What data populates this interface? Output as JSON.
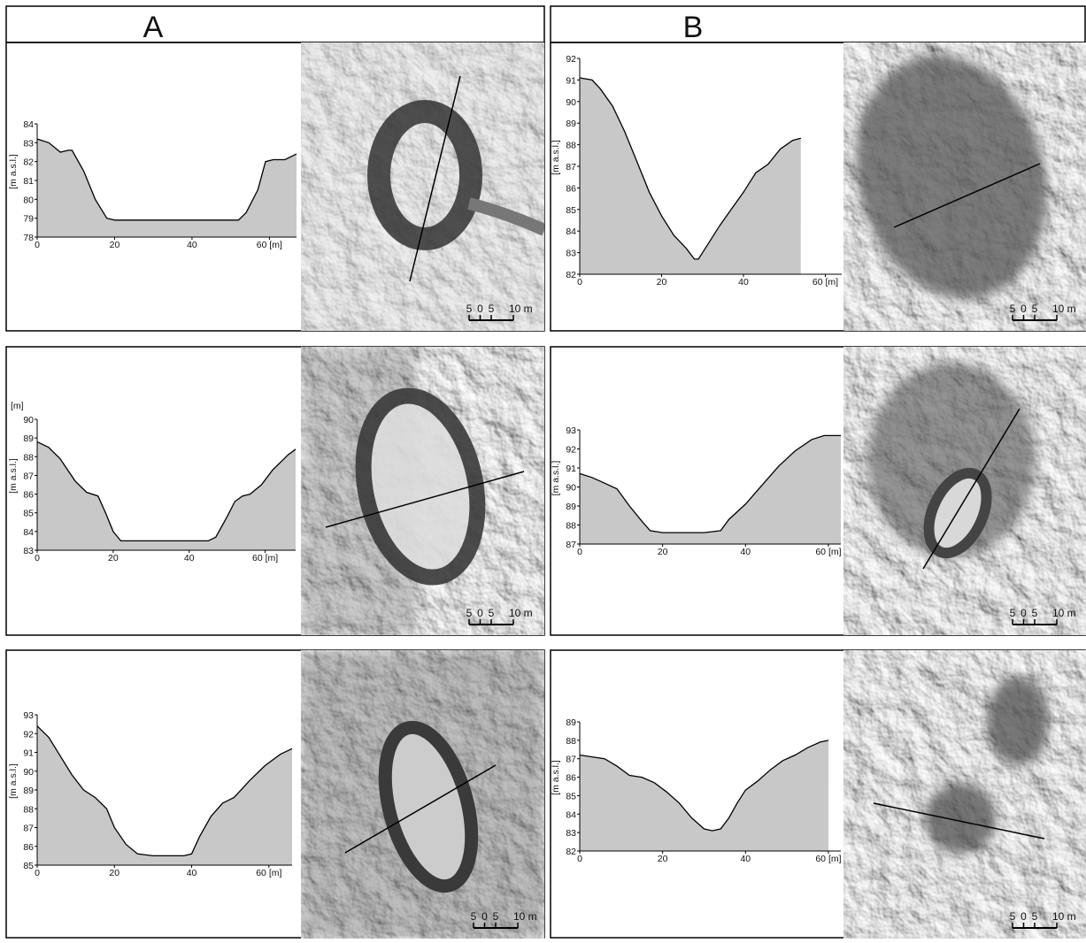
{
  "columns": [
    "A",
    "B"
  ],
  "scale_labels": [
    "5",
    "0",
    "5",
    "10 m"
  ],
  "chart_data": [
    {
      "type": "area",
      "ylabel": "[m a.s.l.]",
      "color": "#c8c8c8",
      "x": [
        0,
        3,
        6,
        8,
        9,
        12,
        15,
        18,
        20,
        30,
        45,
        52,
        54,
        57,
        59,
        61,
        64,
        67
      ],
      "values": [
        83.2,
        83.0,
        82.5,
        82.6,
        82.6,
        81.5,
        80.0,
        79.0,
        78.9,
        78.9,
        78.9,
        78.9,
        79.3,
        80.5,
        82.0,
        82.1,
        82.1,
        82.4
      ],
      "xlim": [
        0,
        67
      ],
      "ylim": [
        78,
        84
      ],
      "xticks": [
        0,
        20,
        40,
        {
          "value": 60,
          "label": "60 [m]"
        }
      ],
      "yticks": [
        78,
        79,
        80,
        81,
        82,
        83,
        84
      ]
    },
    {
      "type": "area",
      "ylabel": "[m a.s.l.]",
      "yunit": "[m]",
      "color": "#c8c8c8",
      "x": [
        0,
        3,
        6,
        10,
        13,
        16,
        18,
        20,
        22,
        30,
        45,
        47,
        50,
        52,
        54,
        56,
        59,
        62,
        66,
        68
      ],
      "values": [
        88.8,
        88.5,
        87.9,
        86.7,
        86.1,
        85.9,
        85.0,
        84.0,
        83.5,
        83.5,
        83.5,
        83.7,
        84.8,
        85.6,
        85.9,
        86.0,
        86.5,
        87.3,
        88.1,
        88.4
      ],
      "xlim": [
        0,
        68
      ],
      "ylim": [
        83,
        90
      ],
      "xticks": [
        0,
        20,
        40,
        {
          "value": 60,
          "label": "60 [m]"
        }
      ],
      "yticks": [
        83,
        84,
        85,
        86,
        87,
        88,
        89,
        90
      ]
    },
    {
      "type": "area",
      "ylabel": "[m a.s.l.]",
      "color": "#c8c8c8",
      "x": [
        0,
        3,
        6,
        9,
        12,
        15,
        18,
        20,
        23,
        26,
        30,
        38,
        40,
        42,
        45,
        48,
        51,
        55,
        59,
        63,
        66
      ],
      "values": [
        92.4,
        91.8,
        90.8,
        89.8,
        89.0,
        88.6,
        88.0,
        87.0,
        86.1,
        85.6,
        85.5,
        85.5,
        85.6,
        86.5,
        87.6,
        88.3,
        88.6,
        89.5,
        90.3,
        90.9,
        91.2
      ],
      "xlim": [
        0,
        66
      ],
      "ylim": [
        85,
        93
      ],
      "xticks": [
        0,
        20,
        40,
        {
          "value": 60,
          "label": "60 [m]"
        }
      ],
      "yticks": [
        85,
        86,
        87,
        88,
        89,
        90,
        91,
        92,
        93
      ]
    },
    {
      "type": "area",
      "ylabel": "[m a.s.l.]",
      "color": "#c8c8c8",
      "x": [
        0,
        3,
        5,
        8,
        11,
        14,
        17,
        20,
        23,
        26,
        28,
        29,
        31,
        34,
        37,
        40,
        43,
        46,
        49,
        52,
        54
      ],
      "values": [
        91.1,
        91.0,
        90.6,
        89.8,
        88.6,
        87.2,
        85.8,
        84.7,
        83.8,
        83.2,
        82.7,
        82.7,
        83.3,
        84.2,
        85.0,
        85.8,
        86.7,
        87.1,
        87.8,
        88.2,
        88.3
      ],
      "xlim": [
        0,
        64
      ],
      "ylim": [
        82,
        92
      ],
      "xticks": [
        0,
        20,
        40,
        {
          "value": 60,
          "label": "60 [m]"
        }
      ],
      "yticks": [
        82,
        83,
        84,
        85,
        86,
        87,
        88,
        89,
        90,
        91,
        92
      ]
    },
    {
      "type": "area",
      "ylabel": "[m a.s.l.]",
      "color": "#c8c8c8",
      "x": [
        0,
        3,
        6,
        9,
        12,
        15,
        17,
        20,
        30,
        34,
        36,
        40,
        44,
        48,
        52,
        56,
        59,
        63
      ],
      "values": [
        90.7,
        90.5,
        90.2,
        89.9,
        89.0,
        88.2,
        87.7,
        87.6,
        87.6,
        87.7,
        88.3,
        89.1,
        90.1,
        91.1,
        91.9,
        92.5,
        92.7,
        92.7
      ],
      "xlim": [
        0,
        63
      ],
      "ylim": [
        87,
        93
      ],
      "xticks": [
        0,
        20,
        40,
        {
          "value": 60,
          "label": "60 [m]"
        }
      ],
      "yticks": [
        87,
        88,
        89,
        90,
        91,
        92,
        93
      ]
    },
    {
      "type": "area",
      "ylabel": "[m a.s.l.]",
      "color": "#c8c8c8",
      "x": [
        0,
        3,
        6,
        9,
        12,
        15,
        18,
        21,
        24,
        27,
        30,
        32,
        34,
        36,
        38,
        40,
        43,
        46,
        49,
        52,
        55,
        58,
        60
      ],
      "values": [
        87.2,
        87.1,
        87.0,
        86.6,
        86.1,
        86.0,
        85.7,
        85.2,
        84.6,
        83.8,
        83.2,
        83.1,
        83.2,
        83.8,
        84.6,
        85.3,
        85.8,
        86.4,
        86.9,
        87.2,
        87.6,
        87.9,
        88.0
      ],
      "xlim": [
        0,
        63
      ],
      "ylim": [
        82,
        89
      ],
      "xticks": [
        0,
        20,
        40,
        {
          "value": 60,
          "label": "60 [m]"
        }
      ],
      "yticks": [
        82,
        83,
        84,
        85,
        86,
        87,
        88,
        89
      ]
    }
  ]
}
